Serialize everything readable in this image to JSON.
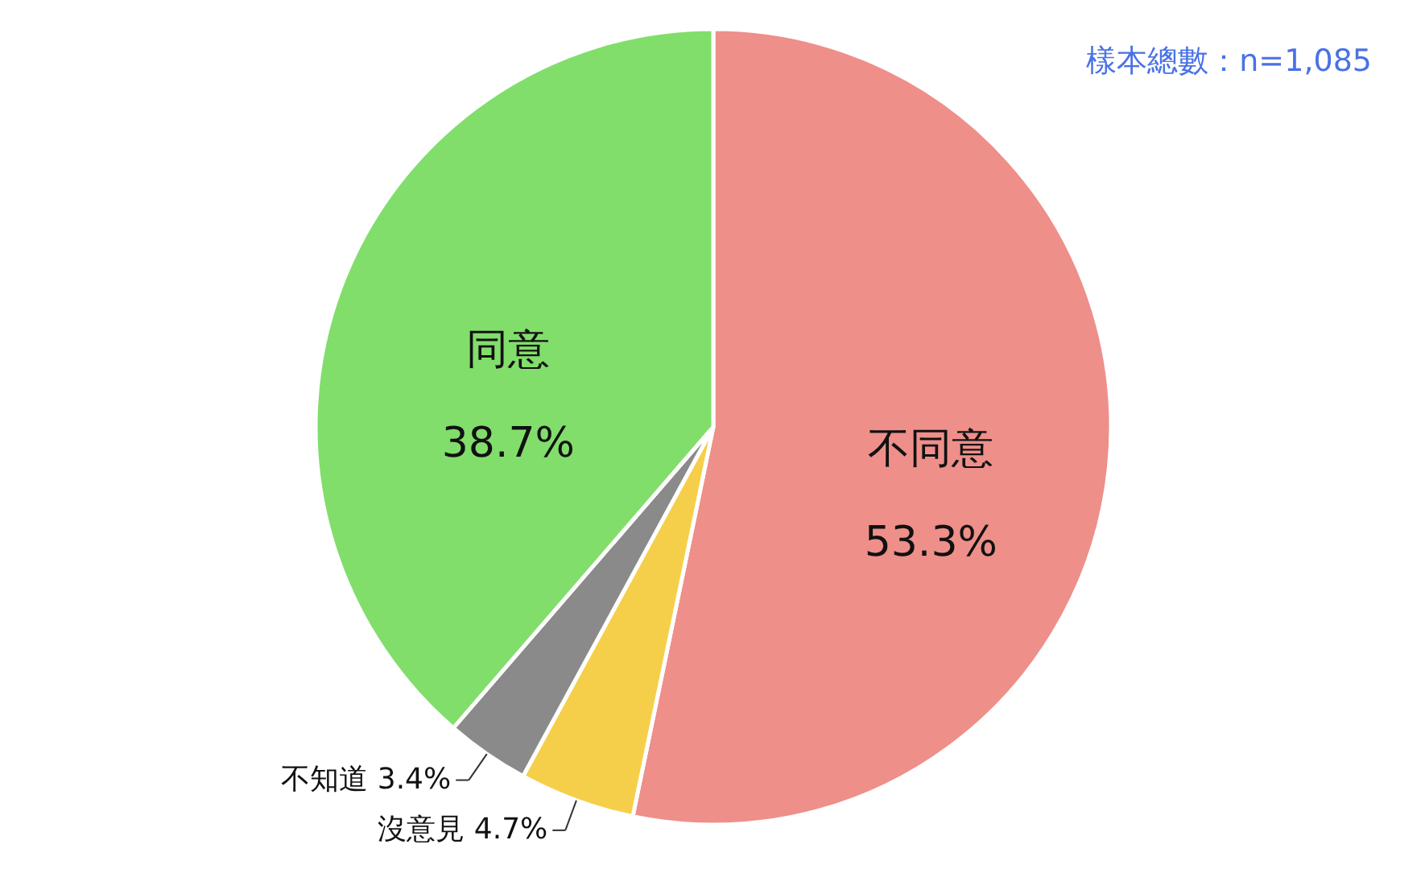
{
  "chart_data": {
    "type": "pie",
    "categories": [
      "不同意",
      "沒意見",
      "不知道",
      "同意"
    ],
    "values": [
      53.3,
      4.7,
      3.4,
      38.7
    ],
    "value_labels": [
      "53.3%",
      "4.7%",
      "3.4%",
      "38.7%"
    ],
    "colors": [
      "#ee8f8a",
      "#f6cf4a",
      "#8a8a8a",
      "#81de6b"
    ],
    "annotations": [
      "樣本總數：n=1,085"
    ]
  }
}
